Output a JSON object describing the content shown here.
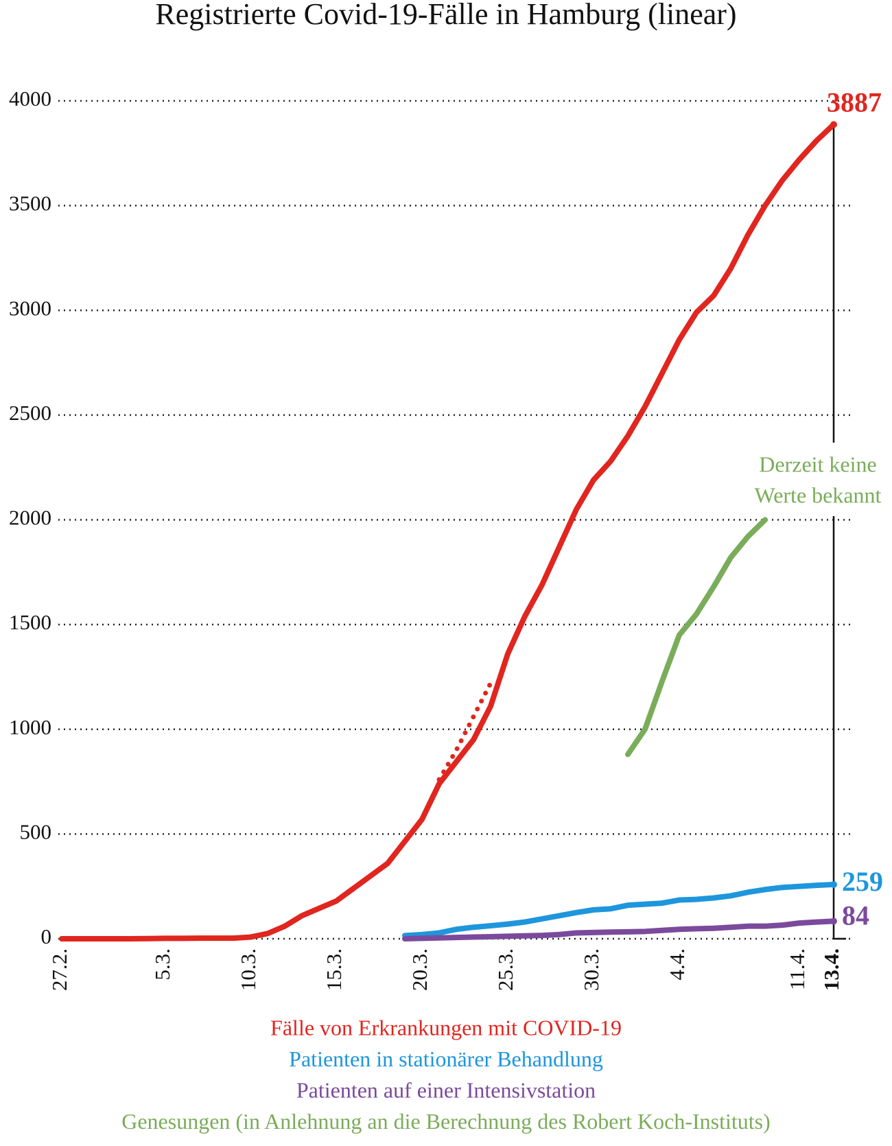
{
  "chart_data": {
    "type": "line",
    "title": "Registrierte Covid-19-Fälle in Hamburg (linear)",
    "categories": [
      "27.2.",
      null,
      null,
      null,
      null,
      null,
      "5.3.",
      null,
      null,
      null,
      null,
      "10.3.",
      null,
      null,
      null,
      null,
      "15.3.",
      null,
      null,
      null,
      null,
      "20.3.",
      null,
      null,
      null,
      null,
      "25.3.",
      null,
      null,
      null,
      null,
      "30.3.",
      null,
      null,
      null,
      null,
      "4.4.",
      null,
      null,
      null,
      null,
      null,
      null,
      "11.4.",
      null,
      "13.4."
    ],
    "ylim": [
      0,
      4000
    ],
    "yticks": [
      0,
      500,
      1000,
      1500,
      2000,
      2500,
      3000,
      3500,
      4000
    ],
    "grid": true,
    "series": [
      {
        "name": "Fälle von Erkrankungen mit COVID-19",
        "color": "#e0261f",
        "values": [
          0,
          0,
          0,
          0,
          0,
          1,
          2,
          2,
          3,
          3,
          3,
          8,
          25,
          60,
          110,
          145,
          180,
          240,
          300,
          360,
          465,
          570,
          740,
          845,
          950,
          1110,
          1360,
          1540,
          1690,
          1870,
          2050,
          2190,
          2280,
          2400,
          2540,
          2700,
          2860,
          2990,
          3070,
          3200,
          3360,
          3500,
          3620,
          3720,
          3810,
          3887
        ]
      },
      {
        "name": "Patienten in stationärer Behandlung",
        "color": "#1e96dc",
        "values": [
          null,
          null,
          null,
          null,
          null,
          null,
          null,
          null,
          null,
          null,
          null,
          null,
          null,
          null,
          null,
          null,
          null,
          null,
          null,
          null,
          15,
          20,
          28,
          45,
          55,
          62,
          70,
          80,
          95,
          110,
          125,
          138,
          143,
          160,
          165,
          170,
          185,
          188,
          195,
          205,
          222,
          235,
          245,
          250,
          255,
          259
        ]
      },
      {
        "name": "Patienten auf einer Intensivstation",
        "color": "#7b4a9c",
        "values": [
          null,
          null,
          null,
          null,
          null,
          null,
          null,
          null,
          null,
          null,
          null,
          null,
          null,
          null,
          null,
          null,
          null,
          null,
          null,
          null,
          0,
          2,
          4,
          6,
          8,
          10,
          12,
          14,
          16,
          20,
          28,
          30,
          32,
          33,
          35,
          40,
          45,
          48,
          50,
          55,
          60,
          60,
          65,
          75,
          80,
          84
        ]
      },
      {
        "name": "Genesungen (in Anlehnung an die Berechnung des Robert Koch-Instituts)",
        "color": "#7aac5a",
        "values": [
          null,
          null,
          null,
          null,
          null,
          null,
          null,
          null,
          null,
          null,
          null,
          null,
          null,
          null,
          null,
          null,
          null,
          null,
          null,
          null,
          null,
          null,
          null,
          null,
          null,
          null,
          null,
          null,
          null,
          null,
          null,
          null,
          null,
          880,
          1000,
          1230,
          1450,
          1550,
          1680,
          1820,
          1920,
          2000,
          null,
          null,
          null,
          null
        ]
      },
      {
        "color": "#e0261f",
        "style": "dotted",
        "values": [
          null,
          null,
          null,
          null,
          null,
          null,
          null,
          null,
          null,
          null,
          null,
          null,
          null,
          null,
          null,
          null,
          null,
          null,
          null,
          null,
          null,
          null,
          760,
          900,
          1060,
          1220,
          null,
          null,
          null,
          null,
          null,
          null,
          null,
          null,
          null,
          null,
          null,
          null,
          null,
          null,
          null,
          null,
          null,
          null,
          null,
          null
        ]
      }
    ],
    "annotation": {
      "lines": [
        "Derzeit keine",
        "Werte bekannt"
      ],
      "color": "#7aac5a"
    }
  }
}
